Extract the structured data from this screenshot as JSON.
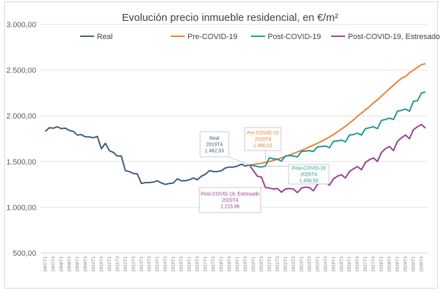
{
  "chart_data": {
    "type": "line",
    "title": "Evolución precio inmueble residencial, en €/m²",
    "xlabel": "",
    "ylabel": "",
    "ylim": [
      500,
      3000
    ],
    "yticks": [
      "500,00",
      "1.000,00",
      "1.500,00",
      "2.000,00",
      "2.500,00",
      "3.000,00"
    ],
    "ytick_values": [
      500,
      1000,
      1500,
      2000,
      2500,
      3000
    ],
    "grid": true,
    "legend_position": "top",
    "x_tick_labels": [
      "2007T1",
      "2007T3",
      "2008T1",
      "2008T3",
      "2009T1",
      "2009T3",
      "2010T1",
      "2010T3",
      "2011T1",
      "2011T3",
      "2012T1",
      "2012T3",
      "2013T1",
      "2013T3",
      "2014T1",
      "2014T3",
      "2015T1",
      "2015T3",
      "2016T1",
      "2016T3",
      "2017T1",
      "2017T3",
      "2018T1",
      "2018T3",
      "2019T1",
      "2019T3",
      "2020T1",
      "2020T3",
      "2021T1",
      "2021T3",
      "2022T1",
      "2022T3",
      "2023T1",
      "2023T3",
      "2024T1",
      "2024T3",
      "2025T1",
      "2025T3",
      "2026T1",
      "2026T3",
      "2027T1",
      "2027T3",
      "2028T1",
      "2028T3",
      "2029T1",
      "2029T3",
      "2030T1",
      "2030T3"
    ],
    "x_range": [
      "2007T1",
      "2030T4"
    ],
    "series": [
      {
        "name": "Real",
        "color": "#3b5b79",
        "start": "2007T1",
        "values": [
          1830,
          1870,
          1865,
          1880,
          1860,
          1865,
          1840,
          1830,
          1790,
          1795,
          1770,
          1770,
          1760,
          1775,
          1640,
          1700,
          1620,
          1600,
          1560,
          1560,
          1400,
          1390,
          1370,
          1365,
          1260,
          1270,
          1270,
          1275,
          1290,
          1265,
          1250,
          1260,
          1265,
          1310,
          1290,
          1290,
          1300,
          1320,
          1300,
          1340,
          1360,
          1400,
          1390,
          1390,
          1400,
          1430,
          1440,
          1440,
          1450,
          1470,
          1450,
          1462.53
        ]
      },
      {
        "name": "Pre-COVID-19",
        "color": "#ed7d31",
        "start": "2019T4",
        "values": [
          1462.53,
          1468,
          1475,
          1482,
          1490.02,
          1500,
          1512,
          1525,
          1540,
          1555,
          1570,
          1588,
          1605,
          1622,
          1640,
          1660,
          1680,
          1700,
          1722,
          1745,
          1768,
          1795,
          1825,
          1855,
          1885,
          1920,
          1955,
          1995,
          2030,
          2065,
          2100,
          2140,
          2175,
          2215,
          2255,
          2295,
          2335,
          2375,
          2410,
          2430,
          2470,
          2500,
          2530,
          2560,
          2570
        ]
      },
      {
        "name": "Post-COVID-19",
        "color": "#1b9892",
        "start": "2019T4",
        "values": [
          1462.53,
          1455,
          1445,
          1440,
          1450.5,
          1540,
          1530,
          1525,
          1505,
          1560,
          1565,
          1560,
          1550,
          1610,
          1615,
          1620,
          1610,
          1660,
          1665,
          1670,
          1650,
          1720,
          1725,
          1735,
          1715,
          1790,
          1795,
          1810,
          1790,
          1860,
          1870,
          1880,
          1860,
          1950,
          1960,
          1975,
          1960,
          2050,
          2060,
          2075,
          2050,
          2160,
          2165,
          2250,
          2260
        ]
      },
      {
        "name": "Post-COVID-19, Estresado",
        "color": "#9b3a93",
        "start": "2019T4",
        "values": [
          1462.53,
          1400,
          1340,
          1330,
          1215.96,
          1210,
          1200,
          1205,
          1165,
          1200,
          1205,
          1200,
          1160,
          1210,
          1220,
          1215,
          1180,
          1250,
          1270,
          1280,
          1240,
          1310,
          1340,
          1355,
          1320,
          1390,
          1420,
          1445,
          1410,
          1490,
          1520,
          1540,
          1500,
          1600,
          1640,
          1665,
          1620,
          1720,
          1760,
          1790,
          1750,
          1850,
          1880,
          1905,
          1865
        ]
      }
    ],
    "annotations": [
      {
        "series": "Real",
        "lines": [
          "Real",
          "2019T4",
          "1.462,53"
        ]
      },
      {
        "series": "Pre-COVID-19",
        "lines": [
          "Pre-COVID-19",
          "2020T4",
          "1.490,02"
        ]
      },
      {
        "series": "Post-COVID-19",
        "lines": [
          "Post-COVID-19",
          "2020T4",
          "1.450,50"
        ]
      },
      {
        "series": "Post-COVID-19, Estresado",
        "lines": [
          "Post-COVID-19, Estresado",
          "2020T4",
          "1.215,96"
        ]
      }
    ]
  }
}
